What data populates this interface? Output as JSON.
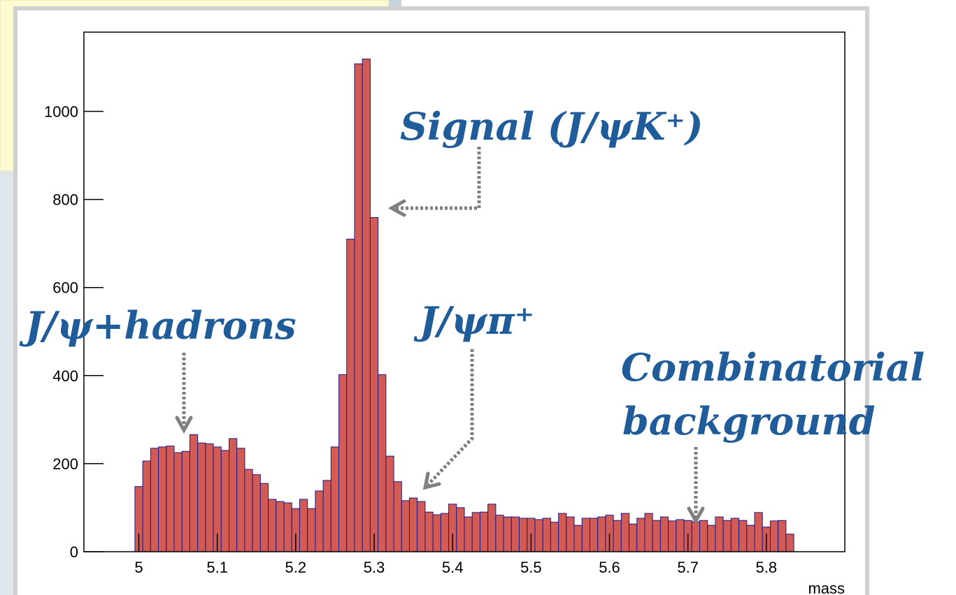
{
  "chart_data": {
    "type": "histogram",
    "x_label": "mass",
    "annotations": [
      "Signal (J/ψK⁺)",
      "J/ψ+hadrons",
      "J/ψπ⁺",
      "Combinatorial",
      "background"
    ],
    "bins": [
      4.995,
      5.005,
      5.015,
      5.025,
      5.035,
      5.045,
      5.055,
      5.065,
      5.075,
      5.085,
      5.095,
      5.105,
      5.115,
      5.125,
      5.135,
      5.145,
      5.155,
      5.165,
      5.175,
      5.185,
      5.195,
      5.205,
      5.215,
      5.225,
      5.235,
      5.245,
      5.255,
      5.265,
      5.275,
      5.285,
      5.295,
      5.305,
      5.315,
      5.325,
      5.335,
      5.345,
      5.355,
      5.365,
      5.375,
      5.385,
      5.395,
      5.405,
      5.415,
      5.425,
      5.435,
      5.445,
      5.455,
      5.465,
      5.475,
      5.485,
      5.495,
      5.505,
      5.515,
      5.525,
      5.535,
      5.545,
      5.555,
      5.565,
      5.575,
      5.585,
      5.595,
      5.605,
      5.615,
      5.625,
      5.635,
      5.645,
      5.655,
      5.665,
      5.675,
      5.685,
      5.695,
      5.705,
      5.715,
      5.725,
      5.735,
      5.745,
      5.755,
      5.765,
      5.775,
      5.785,
      5.795,
      5.805,
      5.815,
      5.825,
      5.835
    ],
    "values": [
      148,
      206,
      235,
      238,
      240,
      225,
      228,
      266,
      247,
      245,
      238,
      230,
      257,
      235,
      187,
      175,
      155,
      119,
      114,
      111,
      98,
      119,
      98,
      138,
      162,
      238,
      402,
      710,
      1108,
      1119,
      759,
      402,
      217,
      159,
      116,
      122,
      114,
      90,
      84,
      87,
      108,
      100,
      79,
      89,
      90,
      108,
      83,
      79,
      79,
      76,
      76,
      73,
      76,
      67,
      87,
      79,
      60,
      76,
      76,
      79,
      83,
      71,
      87,
      63,
      76,
      87,
      71,
      79,
      70,
      73,
      71,
      68,
      71,
      60,
      79,
      71,
      76,
      71,
      60,
      89,
      56,
      70,
      71,
      40
    ],
    "color": "#d35b55",
    "edge_color": "#1a1a8a",
    "annotation_color": "#1f5c99",
    "xlim": [
      4.93,
      5.9
    ],
    "ylim": [
      0,
      1180
    ],
    "xticks": [
      5,
      5.1,
      5.2,
      5.3,
      5.4,
      5.5,
      5.6,
      5.7,
      5.8
    ],
    "yticks": [
      0,
      200,
      400,
      600,
      800,
      1000
    ]
  }
}
